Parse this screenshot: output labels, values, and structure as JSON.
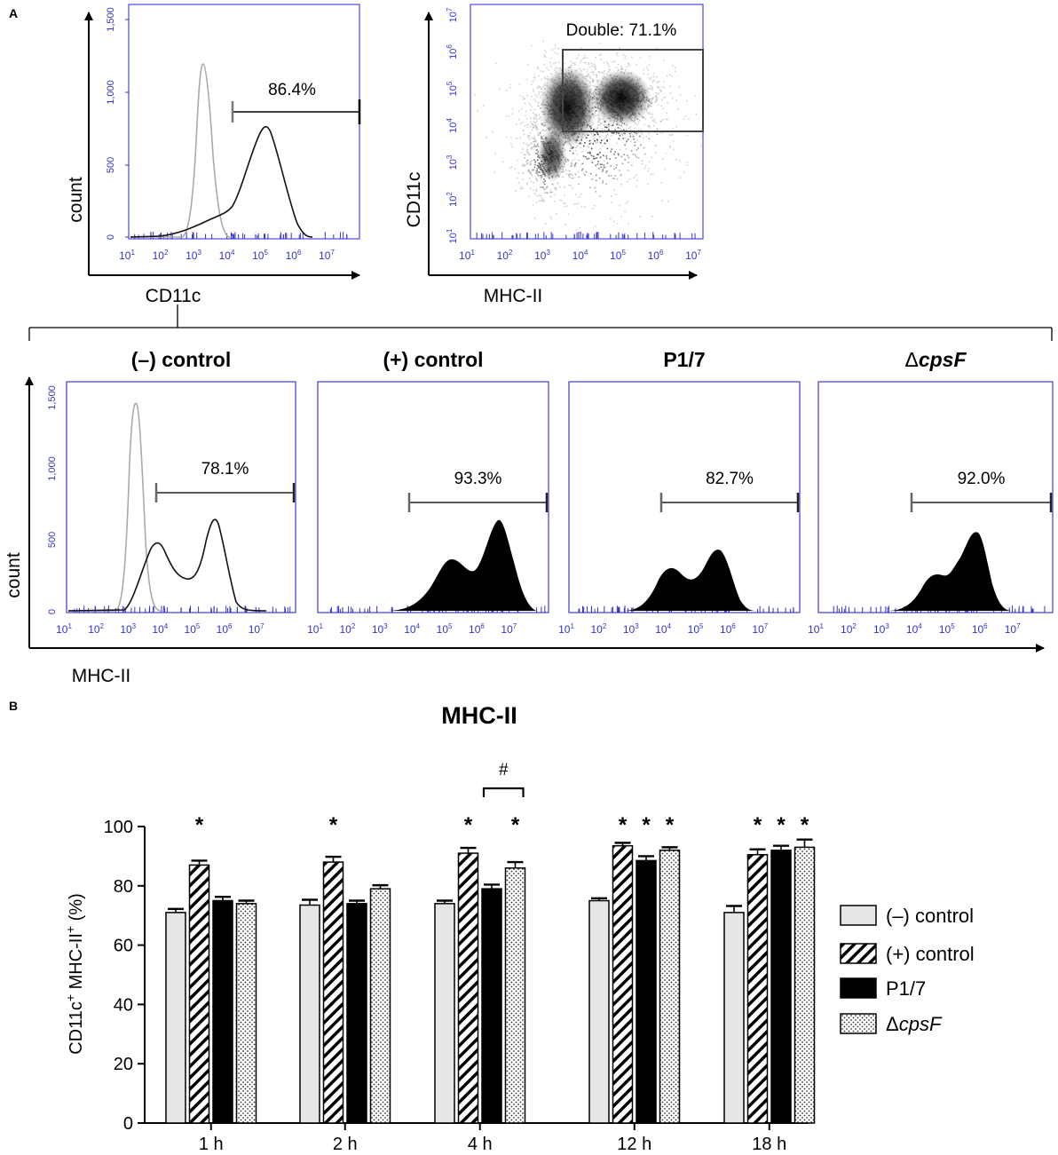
{
  "panel_a": {
    "label": "A",
    "histogram_top": {
      "gate_pct": "86.4%",
      "y_ticks": [
        "0",
        "500",
        "1,000",
        "1,500"
      ],
      "x_ticks": [
        "10",
        "10",
        "10",
        "10",
        "10",
        "10",
        "10"
      ],
      "x_exps": [
        "1",
        "2",
        "3",
        "4",
        "5",
        "6",
        "7"
      ],
      "y_axis_label": "count",
      "x_axis_label": "CD11c"
    },
    "scatter_top": {
      "gate_label": "Double: 71.1%",
      "x_axis_label": "MHC-II",
      "y_axis_label": "CD11c",
      "tick_base": "10",
      "tick_exps": [
        "1",
        "2",
        "3",
        "4",
        "5",
        "6",
        "7"
      ]
    },
    "conditions": [
      {
        "title": "(–) control",
        "pct": "78.1%"
      },
      {
        "title": "(+) control",
        "pct": "93.3%"
      },
      {
        "title": "P1/7",
        "pct": "82.7%"
      },
      {
        "title_prefix": "Δ",
        "title_italic": "cpsF",
        "pct": "92.0%"
      }
    ],
    "bottom_y_ticks": [
      "0",
      "500",
      "1,000",
      "1,500"
    ],
    "bottom_x_label": "MHC-II",
    "bottom_y_label": "count",
    "tick_base": "10",
    "tick_exps": [
      "1",
      "2",
      "3",
      "4",
      "5",
      "6",
      "7"
    ]
  },
  "panel_b": {
    "label": "B",
    "chart_data": {
      "type": "bar",
      "title": "MHC-II",
      "ylabel_parts": [
        "CD11c",
        "+",
        " MHC-II",
        "+",
        " (%)"
      ],
      "xlabel": "",
      "categories": [
        "1 h",
        "2 h",
        "4 h",
        "12 h",
        "18 h"
      ],
      "ylim": [
        0,
        100
      ],
      "y_ticks": [
        "0",
        "20",
        "40",
        "60",
        "80",
        "100"
      ],
      "series": [
        {
          "name": "(–) control",
          "values": [
            71,
            73.5,
            74,
            75,
            71
          ],
          "errors": [
            1.2,
            1.8,
            1.0,
            0.8,
            2.2
          ],
          "fill": "#e6e6e6",
          "pattern": "solid"
        },
        {
          "name": "(+) control",
          "values": [
            87,
            88,
            91,
            93.5,
            90.5
          ],
          "errors": [
            1.5,
            1.8,
            1.8,
            1.0,
            1.8
          ],
          "fill": "#ffffff",
          "pattern": "hatch"
        },
        {
          "name": "P1/7",
          "values": [
            75,
            74,
            79,
            88.5,
            92
          ],
          "errors": [
            1.3,
            1.0,
            1.4,
            1.5,
            1.5
          ],
          "fill": "#000000",
          "pattern": "solid"
        },
        {
          "name": "ΔcpsF",
          "name_prefix": "Δ",
          "name_italic": "cpsF",
          "values": [
            74,
            79,
            86,
            92,
            93
          ],
          "errors": [
            1.0,
            1.2,
            2.0,
            1.0,
            2.6
          ],
          "fill": "#ffffff",
          "pattern": "dots"
        }
      ],
      "significance": [
        {
          "category": 0,
          "series": 1,
          "mark": "*"
        },
        {
          "category": 1,
          "series": 1,
          "mark": "*"
        },
        {
          "category": 2,
          "series": 1,
          "mark": "*"
        },
        {
          "category": 2,
          "series": 3,
          "mark": "*"
        },
        {
          "category": 3,
          "series": 1,
          "mark": "*"
        },
        {
          "category": 3,
          "series": 2,
          "mark": "*"
        },
        {
          "category": 3,
          "series": 3,
          "mark": "*"
        },
        {
          "category": 4,
          "series": 1,
          "mark": "*"
        },
        {
          "category": 4,
          "series": 2,
          "mark": "*"
        },
        {
          "category": 4,
          "series": 3,
          "mark": "*"
        }
      ],
      "comparison": {
        "category": 2,
        "from_series": 2,
        "to_series": 3,
        "mark": "#"
      }
    }
  },
  "colors": {
    "axis_blue": "#3333cc",
    "frame_blue": "#4a4adc",
    "text_black": "#000000"
  }
}
